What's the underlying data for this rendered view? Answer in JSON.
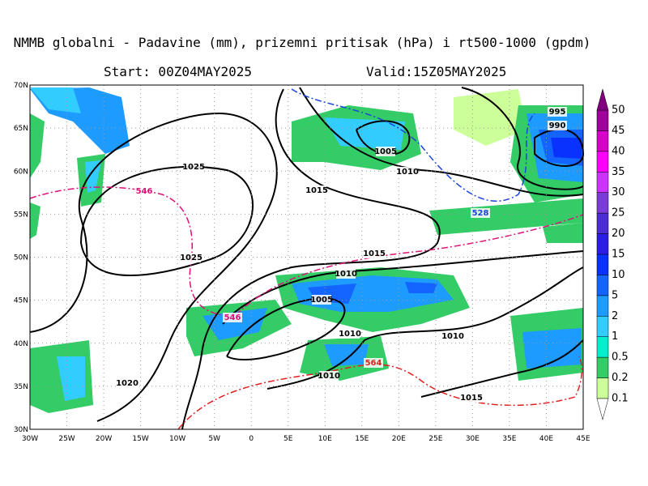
{
  "header": {
    "title": "NMMB globalni - Padavine (mm), prizemni pritisak (hPa) i rt500-1000 (gpdm)",
    "start": "Start: 00Z04MAY2025",
    "valid": "Valid:15Z05MAY2025"
  },
  "map": {
    "lon_ticks": [
      {
        "value": -30,
        "label": "30W"
      },
      {
        "value": -25,
        "label": "25W"
      },
      {
        "value": -20,
        "label": "20W"
      },
      {
        "value": -15,
        "label": "15W"
      },
      {
        "value": -10,
        "label": "10W"
      },
      {
        "value": -5,
        "label": "5W"
      },
      0,
      {
        "value": 5,
        "label": "5E"
      },
      {
        "value": 10,
        "label": "10E"
      },
      {
        "value": 15,
        "label": "15E"
      },
      {
        "value": 20,
        "label": "20E"
      },
      {
        "value": 25,
        "label": "25E"
      },
      {
        "value": 30,
        "label": "30E"
      },
      {
        "value": 35,
        "label": "35E"
      },
      {
        "value": 40,
        "label": "40E"
      },
      {
        "value": 45,
        "label": "45E"
      }
    ],
    "lat_ticks": [
      {
        "value": 30,
        "label": "30N"
      },
      {
        "value": 35,
        "label": "35N"
      },
      {
        "value": 40,
        "label": "40N"
      },
      {
        "value": 45,
        "label": "45N"
      },
      {
        "value": 50,
        "label": "50N"
      },
      {
        "value": 55,
        "label": "55N"
      },
      {
        "value": 60,
        "label": "60N"
      },
      {
        "value": 65,
        "label": "65N"
      },
      {
        "value": 70,
        "label": "70N"
      }
    ],
    "contour_labels": [
      995,
      990,
      1005,
      1010,
      1025,
      1015,
      546,
      528,
      1025,
      1015,
      1010,
      1005,
      546,
      1010,
      1010,
      564,
      1010,
      1020,
      1015
    ]
  },
  "colorbar": {
    "labels": [
      0.1,
      0.2,
      0.5,
      1,
      2,
      5,
      10,
      15,
      20,
      25,
      30,
      35,
      40,
      45,
      50
    ],
    "colors": [
      "#ccff99",
      "#33cc66",
      "#00eecc",
      "#33ccff",
      "#1e9bff",
      "#1464ff",
      "#0a32ff",
      "#2a1ee6",
      "#4b2bd4",
      "#7a3cd8",
      "#cc33ff",
      "#ff00ff",
      "#d600c8",
      "#a0009c"
    ],
    "over_color": "#800080"
  }
}
